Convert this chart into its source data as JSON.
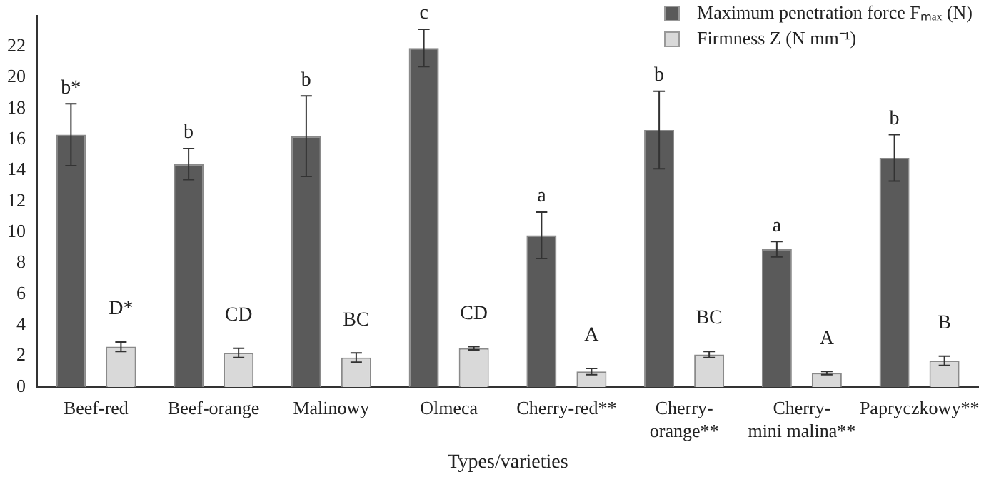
{
  "chart_data": {
    "type": "bar",
    "xlabel": "Types/varieties",
    "categories": [
      "Beef-red",
      "Beef-orange",
      "Malinowy",
      "Olmeca",
      "Cherry-red**",
      "Cherry-orange**",
      "Cherry-mini malina**",
      "Papryczkowy**"
    ],
    "series": [
      {
        "name": "Maximum penetration force Fₘₐₓ (N)",
        "color": "#5a5a5a",
        "values": [
          16.3,
          14.4,
          16.2,
          21.9,
          9.8,
          16.6,
          8.9,
          14.8
        ],
        "errors": [
          2,
          1,
          2.6,
          1.2,
          1.5,
          2.5,
          0.5,
          1.5
        ],
        "value_labels": [
          "b*",
          "b",
          "b",
          "c",
          "a",
          "b",
          "a",
          "b"
        ]
      },
      {
        "name": "Firmness Z (N mm⁻¹)",
        "color": "#d9d9d9",
        "values": [
          2.6,
          2.2,
          1.9,
          2.5,
          1.0,
          2.1,
          0.9,
          1.7
        ],
        "errors": [
          0.3,
          0.3,
          0.3,
          0.1,
          0.2,
          0.2,
          0.1,
          0.3
        ],
        "value_labels": [
          "D*",
          "CD",
          "BC",
          "CD",
          "A",
          "BC",
          "A",
          "B"
        ]
      }
    ],
    "ylim": [
      0,
      24
    ],
    "yticks": [
      0,
      2,
      4,
      6,
      8,
      10,
      12,
      14,
      16,
      18,
      20,
      22
    ],
    "grid": false,
    "legend": "top right"
  }
}
